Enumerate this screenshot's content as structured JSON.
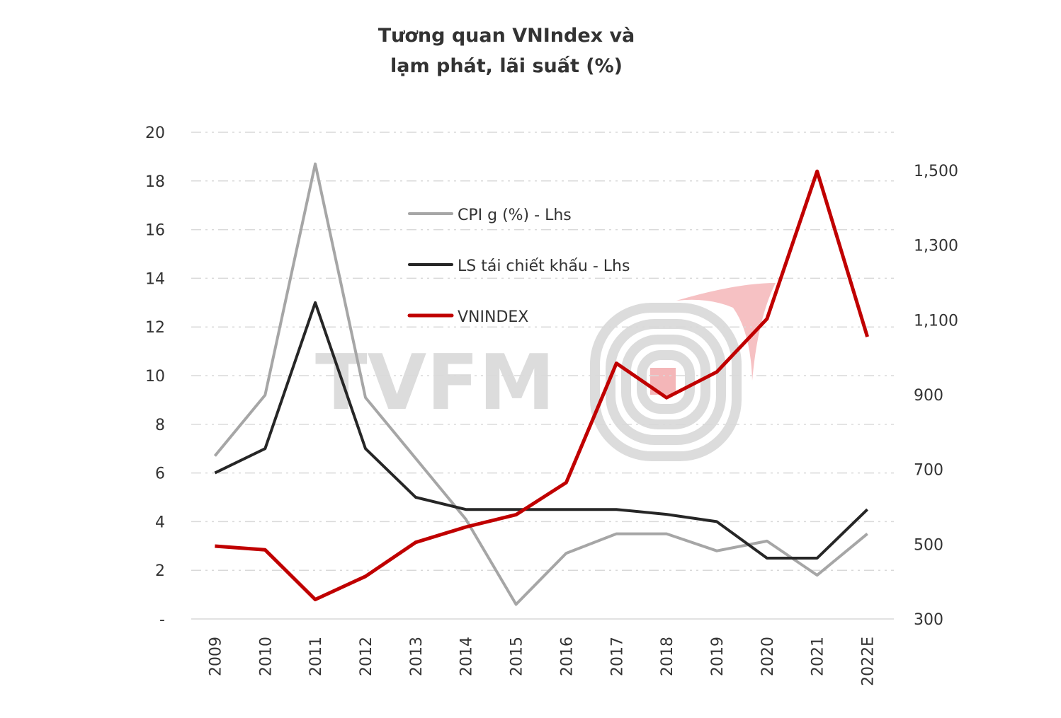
{
  "chart_data": {
    "type": "line",
    "title_lines": [
      "Tương quan VNIndex và",
      "lạm phát, lãi suất (%)"
    ],
    "categories": [
      "2009",
      "2010",
      "2011",
      "2012",
      "2013",
      "2014",
      "2015",
      "2016",
      "2017",
      "2018",
      "2019",
      "2020",
      "2021",
      "2022E"
    ],
    "left_axis": {
      "ylim": [
        0,
        20
      ],
      "ticks": [
        0,
        2,
        4,
        6,
        8,
        10,
        12,
        14,
        16,
        18,
        20
      ],
      "tick_labels": [
        "-",
        "2",
        "4",
        "6",
        "8",
        "10",
        "12",
        "14",
        "16",
        "18",
        "20"
      ]
    },
    "right_axis": {
      "ylim": [
        300,
        1500
      ],
      "ticks": [
        300,
        500,
        700,
        900,
        1100,
        1300,
        1500
      ],
      "tick_labels": [
        "300",
        "500",
        "700",
        "900",
        "1,100",
        "1,300",
        "1,500"
      ]
    },
    "grid": true,
    "legend_position": "upper-center",
    "series": [
      {
        "name": "CPI g (%)  - Lhs",
        "axis": "left",
        "color": "#a6a6a6",
        "values": [
          6.7,
          9.2,
          18.7,
          9.1,
          6.6,
          4.1,
          0.6,
          2.7,
          3.5,
          3.5,
          2.8,
          3.2,
          1.8,
          3.5
        ]
      },
      {
        "name": "LS tái chiết khấu - Lhs",
        "axis": "left",
        "color": "#262626",
        "values": [
          6,
          7,
          13,
          7,
          5,
          4.5,
          4.5,
          4.5,
          4.5,
          4.3,
          4,
          2.5,
          2.5,
          4.5
        ]
      },
      {
        "name": "VNINDEX",
        "axis": "right",
        "color": "#c00000",
        "values": [
          495,
          485,
          352,
          414,
          505,
          546,
          579,
          665,
          984,
          892,
          961,
          1103,
          1498,
          1055
        ]
      }
    ],
    "watermark": "TVFM"
  }
}
